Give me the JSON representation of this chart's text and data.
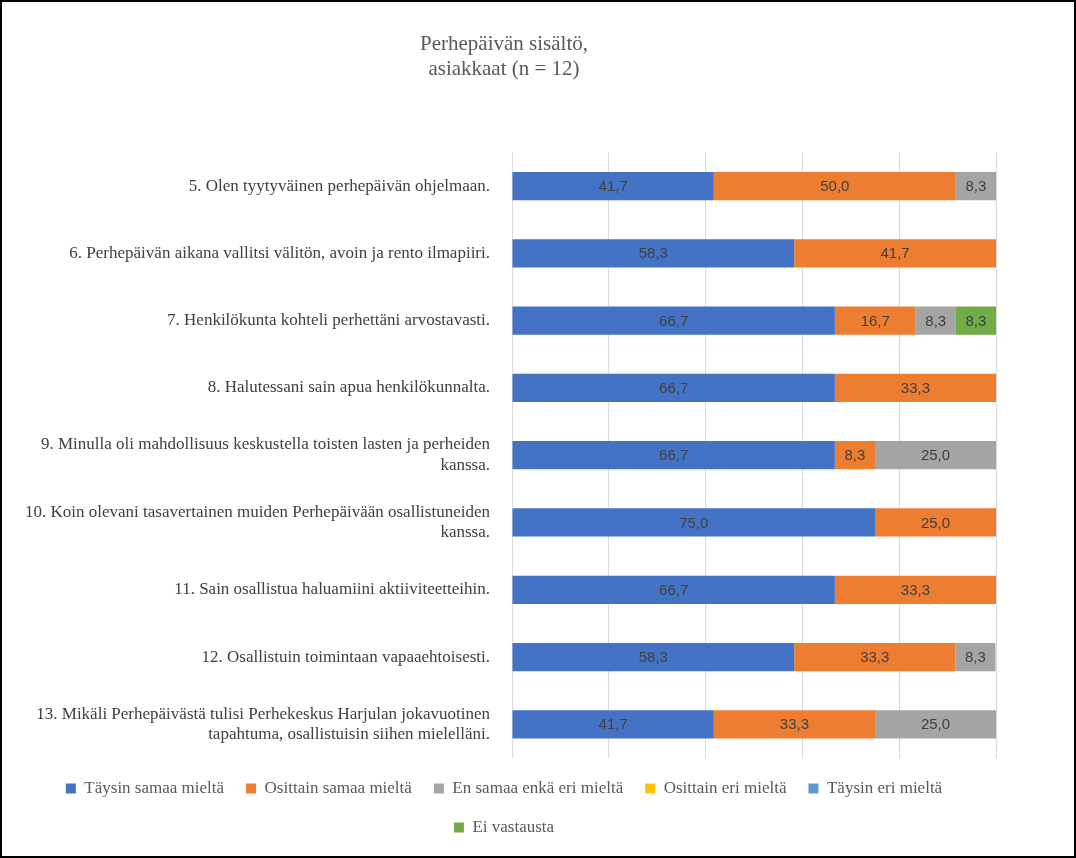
{
  "chart_data": {
    "type": "bar",
    "orientation": "horizontal",
    "stacked": true,
    "title": "Perhepäivän sisältö,\nasiakkaat (n = 12)",
    "categories": [
      "5. Olen tyytyväinen perhepäivän ohjelmaan.",
      "6. Perhepäivän aikana vallitsi välitön, avoin ja rento ilmapiiri.",
      "7. Henkilökunta kohteli perhettäni arvostavasti.",
      "8. Halutessani sain apua henkilökunnalta.",
      "9. Minulla oli mahdollisuus keskustella toisten lasten ja perheiden kanssa.",
      "10. Koin olevani tasavertainen muiden Perhepäivään osallistuneiden kanssa.",
      "11. Sain osallistua haluamiini aktiiviteetteihin.",
      "12. Osallistuin toimintaan vapaaehtoisesti.",
      "13. Mikäli Perhepäivästä tulisi Perhekeskus Harjulan jokavuotinen tapahtuma, osallistuisin siihen mielelläni."
    ],
    "series": [
      {
        "name": "Täysin samaa mieltä",
        "color": "#4472c4",
        "values": [
          41.7,
          58.3,
          66.7,
          66.7,
          66.7,
          75.0,
          66.7,
          58.3,
          41.7
        ],
        "value_labels": [
          "41,7",
          "58,3",
          "66,7",
          "66,7",
          "66,7",
          "75,0",
          "66,7",
          "58,3",
          "41,7"
        ]
      },
      {
        "name": "Osittain samaa mieltä",
        "color": "#ed7d31",
        "values": [
          50.0,
          41.7,
          16.7,
          33.3,
          8.3,
          25.0,
          33.3,
          33.3,
          33.3
        ],
        "value_labels": [
          "50,0",
          "41,7",
          "16,7",
          "33,3",
          "8,3",
          "25,0",
          "33,3",
          "33,3",
          "33,3"
        ]
      },
      {
        "name": "En samaa enkä eri mieltä",
        "color": "#a5a5a5",
        "values": [
          8.3,
          null,
          8.3,
          null,
          25.0,
          null,
          null,
          8.3,
          25.0
        ],
        "value_labels": [
          "8,3",
          null,
          "8,3",
          null,
          "25,0",
          null,
          null,
          "8,3",
          "25,0"
        ]
      },
      {
        "name": "Osittain eri mieltä",
        "color": "#ffc000",
        "values": [
          null,
          null,
          null,
          null,
          null,
          null,
          null,
          null,
          null
        ]
      },
      {
        "name": "Täysin eri mieltä",
        "color": "#5b9bd5",
        "values": [
          null,
          null,
          null,
          null,
          null,
          null,
          null,
          null,
          null
        ]
      },
      {
        "name": "Ei vastausta",
        "color": "#70ad47",
        "values": [
          null,
          null,
          8.3,
          null,
          null,
          null,
          null,
          null,
          null
        ],
        "value_labels": [
          null,
          null,
          "8,3",
          null,
          null,
          null,
          null,
          null,
          null
        ]
      }
    ],
    "xlim": [
      0,
      100
    ],
    "xticks": [
      {
        "value": 0,
        "label": null
      },
      {
        "value": 20,
        "label": null
      },
      {
        "value": 40,
        "label": null
      },
      {
        "value": 60,
        "label": null
      },
      {
        "value": 80,
        "label": null
      },
      {
        "value": 100,
        "label": null
      }
    ],
    "grid": "x",
    "tick_labels": "y",
    "legend": "bottom"
  }
}
